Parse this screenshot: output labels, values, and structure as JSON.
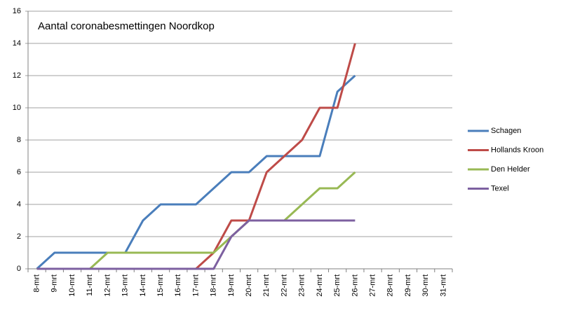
{
  "chart_data": {
    "type": "line",
    "title": "Aantal coronabesmettingen Noordkop",
    "categories": [
      "8-mrt",
      "9-mrt",
      "10-mrt",
      "11-mrt",
      "12-mrt",
      "13-mrt",
      "14-mrt",
      "15-mrt",
      "16-mrt",
      "17-mrt",
      "18-mrt",
      "19-mrt",
      "20-mrt",
      "21-mrt",
      "22-mrt",
      "23-mrt",
      "24-mrt",
      "25-mrt",
      "26-mrt",
      "27-mrt",
      "28-mrt",
      "29-mrt",
      "30-mrt",
      "31-mrt"
    ],
    "series": [
      {
        "name": "Schagen",
        "color": "#4a7ebb",
        "values": [
          0,
          1,
          1,
          1,
          1,
          1,
          3,
          4,
          4,
          4,
          5,
          6,
          6,
          7,
          7,
          7,
          7,
          11,
          12,
          null,
          null,
          null,
          null,
          null
        ]
      },
      {
        "name": "Hollands Kroon",
        "color": "#be4b48",
        "values": [
          0,
          0,
          0,
          0,
          0,
          0,
          0,
          0,
          0,
          0,
          1,
          3,
          3,
          6,
          7,
          8,
          10,
          10,
          14,
          null,
          null,
          null,
          null,
          null
        ]
      },
      {
        "name": "Den Helder",
        "color": "#98b954",
        "values": [
          0,
          0,
          0,
          0,
          1,
          1,
          1,
          1,
          1,
          1,
          1,
          2,
          3,
          3,
          3,
          4,
          5,
          5,
          6,
          null,
          null,
          null,
          null,
          null
        ]
      },
      {
        "name": "Texel",
        "color": "#7d60a0",
        "values": [
          0,
          0,
          0,
          0,
          0,
          0,
          0,
          0,
          0,
          0,
          0,
          2,
          3,
          3,
          3,
          3,
          3,
          3,
          3,
          null,
          null,
          null,
          null,
          null
        ]
      }
    ],
    "ylim": [
      0,
      16
    ],
    "yticks": [
      0,
      2,
      4,
      6,
      8,
      10,
      12,
      14,
      16
    ],
    "grid": true,
    "legend": "right"
  }
}
